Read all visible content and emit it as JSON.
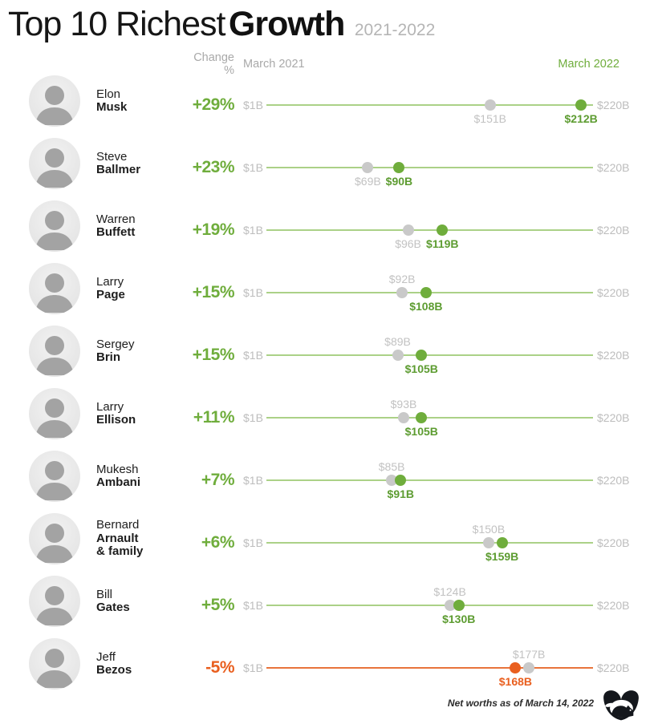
{
  "title": {
    "light": "Top 10 Richest",
    "bold": "Growth",
    "period": "2021-2022"
  },
  "columns": {
    "change": "Change %",
    "start": "March 2021",
    "end": "March 2022"
  },
  "footer": {
    "note": "Net worths as of March 14, 2022",
    "logo": "rhino-badge-logo"
  },
  "colors": {
    "positive_green": "#6fad3c",
    "track_green": "#abd187",
    "negative_orange": "#e95f1f",
    "track_orange": "#e8743b",
    "gray_dot": "#c9c9c9",
    "label_gray": "#bdbdbd",
    "header_gray": "#a9a9a9"
  },
  "chart_data": {
    "type": "dumbbell",
    "title": "Top 10 Richest Growth 2021-2022",
    "x_axis": {
      "min": 1,
      "max": 220,
      "min_label": "$1B",
      "max_label": "$220B",
      "unit": "USD billions"
    },
    "series": [
      {
        "name": "March 2021",
        "marker": "gray-dot"
      },
      {
        "name": "March 2022",
        "marker": "green-dot, orange when negative"
      }
    ],
    "people": [
      {
        "rank": 1,
        "first": "Elon",
        "last": "Musk",
        "change_label": "+29%",
        "march_2021": 151,
        "march_2022": 212,
        "march_2021_label": "$151B",
        "march_2022_label": "$212B",
        "trend": "up",
        "start_label_position": "below"
      },
      {
        "rank": 2,
        "first": "Steve",
        "last": "Ballmer",
        "change_label": "+23%",
        "march_2021": 69,
        "march_2022": 90,
        "march_2021_label": "$69B",
        "march_2022_label": "$90B",
        "trend": "up",
        "start_label_position": "below"
      },
      {
        "rank": 3,
        "first": "Warren",
        "last": "Buffett",
        "change_label": "+19%",
        "march_2021": 96,
        "march_2022": 119,
        "march_2021_label": "$96B",
        "march_2022_label": "$119B",
        "trend": "up",
        "start_label_position": "below"
      },
      {
        "rank": 4,
        "first": "Larry",
        "last": "Page",
        "change_label": "+15%",
        "march_2021": 92,
        "march_2022": 108,
        "march_2021_label": "$92B",
        "march_2022_label": "$108B",
        "trend": "up",
        "start_label_position": "above"
      },
      {
        "rank": 5,
        "first": "Sergey",
        "last": "Brin",
        "change_label": "+15%",
        "march_2021": 89,
        "march_2022": 105,
        "march_2021_label": "$89B",
        "march_2022_label": "$105B",
        "trend": "up",
        "start_label_position": "above"
      },
      {
        "rank": 6,
        "first": "Larry",
        "last": "Ellison",
        "change_label": "+11%",
        "march_2021": 93,
        "march_2022": 105,
        "march_2021_label": "$93B",
        "march_2022_label": "$105B",
        "trend": "up",
        "start_label_position": "above"
      },
      {
        "rank": 7,
        "first": "Mukesh",
        "last": "Ambani",
        "change_label": "+7%",
        "march_2021": 85,
        "march_2022": 91,
        "march_2021_label": "$85B",
        "march_2022_label": "$91B",
        "trend": "up",
        "start_label_position": "above"
      },
      {
        "rank": 8,
        "first": "Bernard",
        "last": "Arnault",
        "last_extra": "& family",
        "change_label": "+6%",
        "march_2021": 150,
        "march_2022": 159,
        "march_2021_label": "$150B",
        "march_2022_label": "$159B",
        "trend": "up",
        "start_label_position": "above"
      },
      {
        "rank": 9,
        "first": "Bill",
        "last": "Gates",
        "change_label": "+5%",
        "march_2021": 124,
        "march_2022": 130,
        "march_2021_label": "$124B",
        "march_2022_label": "$130B",
        "trend": "up",
        "start_label_position": "above"
      },
      {
        "rank": 10,
        "first": "Jeff",
        "last": "Bezos",
        "change_label": "-5%",
        "march_2021": 177,
        "march_2022": 168,
        "march_2021_label": "$177B",
        "march_2022_label": "$168B",
        "trend": "down",
        "start_label_position": "above"
      }
    ]
  }
}
